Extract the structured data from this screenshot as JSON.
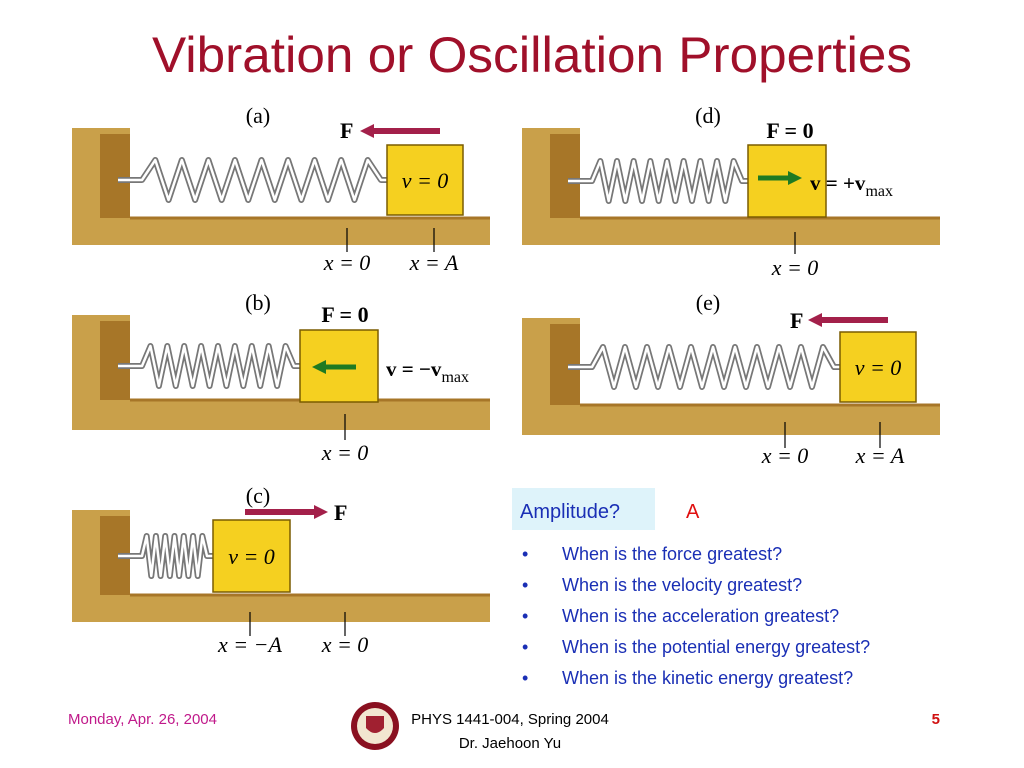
{
  "title": "Vibration or Oscillation Properties",
  "panels": [
    {
      "label": "(a)",
      "force": "F",
      "block_label": "v = 0",
      "positions": [
        "x = 0",
        "x = A"
      ]
    },
    {
      "label": "(d)",
      "force": "F = 0",
      "velocity": {
        "text": "v = +v",
        "sub": "max"
      },
      "positions": [
        "x = 0"
      ]
    },
    {
      "label": "(b)",
      "force": "F = 0",
      "velocity": {
        "text": "v = −v",
        "sub": "max"
      },
      "positions": [
        "x = 0"
      ]
    },
    {
      "label": "(e)",
      "force": "F",
      "block_label": "v = 0",
      "positions": [
        "x = 0",
        "x = A"
      ]
    },
    {
      "label": "(c)",
      "force": "F",
      "block_label": "v = 0",
      "positions": [
        "x = −A",
        "x = 0"
      ]
    }
  ],
  "question": {
    "label": "Amplitude?",
    "answer": "A"
  },
  "bullets": [
    "When is the force greatest?",
    "When is the velocity greatest?",
    "When is the acceleration greatest?",
    "When is the potential energy greatest?",
    "When is the kinetic energy greatest?"
  ],
  "footer": {
    "date": "Monday, Apr. 26, 2004",
    "course": "PHYS 1441-004, Spring 2004",
    "instructor": "Dr. Jaehoon Yu",
    "page": "5"
  }
}
